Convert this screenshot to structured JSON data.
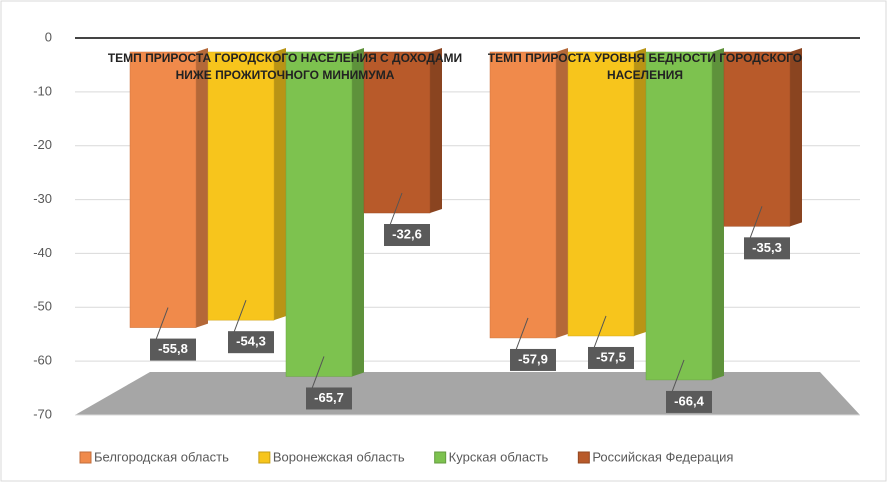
{
  "chart_data": {
    "type": "bar3d",
    "categories": [
      "ТЕМП ПРИРОСТА ГОРОДСКОГО НАСЕЛЕНИЯ С ДОХОДАМИ НИЖЕ ПРОЖИТОЧНОГО МИНИМУМА",
      "ТЕМП ПРИРОСТА УРОВНЯ БЕДНОСТИ ГОРОДСКОГО НАСЕЛЕНИЯ"
    ],
    "series": [
      {
        "name": "Белгородская область",
        "color": "#f08a4b",
        "values": [
          -55.8,
          -57.9
        ],
        "value_labels": [
          "-55,8",
          "-57,9"
        ]
      },
      {
        "name": "Воронежская область",
        "color": "#f7c51c",
        "values": [
          -54.3,
          -57.5
        ],
        "value_labels": [
          "-54,3",
          "-57,5"
        ]
      },
      {
        "name": "Курская область",
        "color": "#7dc24f",
        "values": [
          -65.7,
          -66.4
        ],
        "value_labels": [
          "-65,7",
          "-66,4"
        ]
      },
      {
        "name": "Российская Федерация",
        "color": "#b85a2a",
        "values": [
          -32.6,
          -35.3
        ],
        "value_labels": [
          "-32,6",
          "-35,3"
        ]
      }
    ],
    "ylim": [
      -70,
      0
    ],
    "yticks": [
      0,
      -10,
      -20,
      -30,
      -40,
      -50,
      -60,
      -70
    ],
    "grid": true,
    "legend": "bottom"
  }
}
